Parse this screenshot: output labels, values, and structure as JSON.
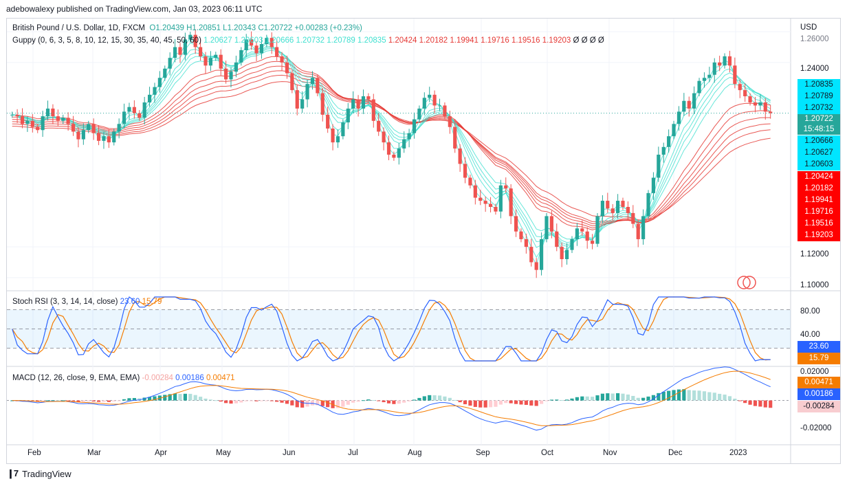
{
  "header": {
    "caption": "adebowalexy published on TradingView.com, Jan 03, 2023 06:11 UTC"
  },
  "main_legend": {
    "symbol": "British Pound / U.S. Dollar, 1D, FXCM",
    "ohlc": "O1.20439  H1.20851  L1.20343  C1.20722  +0.00283 (+0.23%)"
  },
  "guppy_legend": {
    "label": "Guppy (0, 6, 3, 5, 8, 10, 12, 15, 30, 35, 40, 45, 50, 60)",
    "short_values": [
      "1.20627",
      "1.20603",
      "1.20666",
      "1.20732",
      "1.20789",
      "1.20835"
    ],
    "long_values": [
      "1.20424",
      "1.20182",
      "1.19941",
      "1.19716",
      "1.19516",
      "1.19203"
    ],
    "empty_values": "Ø  Ø  Ø  Ø"
  },
  "price_axis": {
    "currency": "USD",
    "ticks": [
      "1.26000",
      "1.24000",
      "1.12000",
      "1.10000"
    ],
    "last_price": "1.20722",
    "countdown": "15:48:15",
    "cyan_badges": [
      "1.20835",
      "1.20789",
      "1.20732",
      "1.20666",
      "1.20627",
      "1.20603"
    ],
    "red_badges": [
      "1.20424",
      "1.20182",
      "1.19941",
      "1.19716",
      "1.19516",
      "1.19203"
    ]
  },
  "stoch_rsi": {
    "label": "Stoch RSI (3, 3, 14, 14, close)",
    "k_value": "23.60",
    "d_value": "15.79",
    "ticks": [
      "80.00",
      "40.00"
    ],
    "k_badge": "23.60",
    "d_badge": "15.79"
  },
  "macd": {
    "label": "MACD (12, 26, close, 9, EMA, EMA)",
    "hist_value": "-0.00284",
    "macd_value": "0.00186",
    "signal_value": "0.00471",
    "ticks": [
      "0.02000",
      "-0.02000"
    ],
    "signal_badge": "0.00471",
    "macd_badge": "0.00186",
    "hist_badge": "-0.00284"
  },
  "time_axis": {
    "labels": [
      "Feb",
      "Mar",
      "Apr",
      "May",
      "Jun",
      "Jul",
      "Aug",
      "Sep",
      "Oct",
      "Nov",
      "Dec",
      "2023"
    ]
  },
  "footer": {
    "brand": "TradingView"
  },
  "colors": {
    "up": "#26a69a",
    "down": "#ef5350",
    "guppy_short": "#40e0d0",
    "guppy_long": "#e53935",
    "stoch_k": "#2962ff",
    "stoch_d": "#f57c00",
    "macd_line": "#2962ff",
    "signal_line": "#f57c00",
    "badge_cyan": "#00e5ff",
    "badge_red": "#ff0000"
  },
  "chart_data": {
    "type": "candlestick",
    "symbol": "GBP/USD",
    "ylim": [
      1.095,
      1.265
    ],
    "months": [
      "Feb",
      "Mar",
      "Apr",
      "May",
      "Jun",
      "Jul",
      "Aug",
      "Sep",
      "Oct",
      "Nov",
      "Dec",
      "2023"
    ],
    "close_series_approx": [
      1.206,
      1.205,
      1.2,
      1.202,
      1.198,
      1.196,
      1.205,
      1.21,
      1.205,
      1.202,
      1.204,
      1.2,
      1.195,
      1.19,
      1.196,
      1.2,
      1.194,
      1.189,
      1.192,
      1.188,
      1.195,
      1.2,
      1.208,
      1.211,
      1.207,
      1.204,
      1.214,
      1.219,
      1.224,
      1.23,
      1.236,
      1.243,
      1.25,
      1.245,
      1.255,
      1.258,
      1.25,
      1.244,
      1.238,
      1.243,
      1.245,
      1.236,
      1.229,
      1.234,
      1.24,
      1.248,
      1.255,
      1.251,
      1.246,
      1.252,
      1.256,
      1.25,
      1.244,
      1.24,
      1.233,
      1.222,
      1.21,
      1.216,
      1.226,
      1.23,
      1.22,
      1.206,
      1.197,
      1.188,
      1.192,
      1.201,
      1.21,
      1.216,
      1.21,
      1.218,
      1.216,
      1.202,
      1.195,
      1.188,
      1.18,
      1.178,
      1.184,
      1.19,
      1.194,
      1.203,
      1.21,
      1.217,
      1.219,
      1.212,
      1.212,
      1.205,
      1.198,
      1.184,
      1.174,
      1.165,
      1.16,
      1.152,
      1.15,
      1.148,
      1.146,
      1.143,
      1.16,
      1.158,
      1.14,
      1.13,
      1.125,
      1.12,
      1.11,
      1.105,
      1.125,
      1.14,
      1.13,
      1.12,
      1.112,
      1.118,
      1.125,
      1.132,
      1.13,
      1.124,
      1.122,
      1.14,
      1.15,
      1.145,
      1.142,
      1.15,
      1.146,
      1.142,
      1.135,
      1.125,
      1.14,
      1.155,
      1.165,
      1.18,
      1.185,
      1.192,
      1.2,
      1.208,
      1.215,
      1.21,
      1.22,
      1.228,
      1.23,
      1.232,
      1.24,
      1.238,
      1.244,
      1.238,
      1.226,
      1.222,
      1.218,
      1.214,
      1.212,
      1.214,
      1.208,
      1.207
    ]
  }
}
